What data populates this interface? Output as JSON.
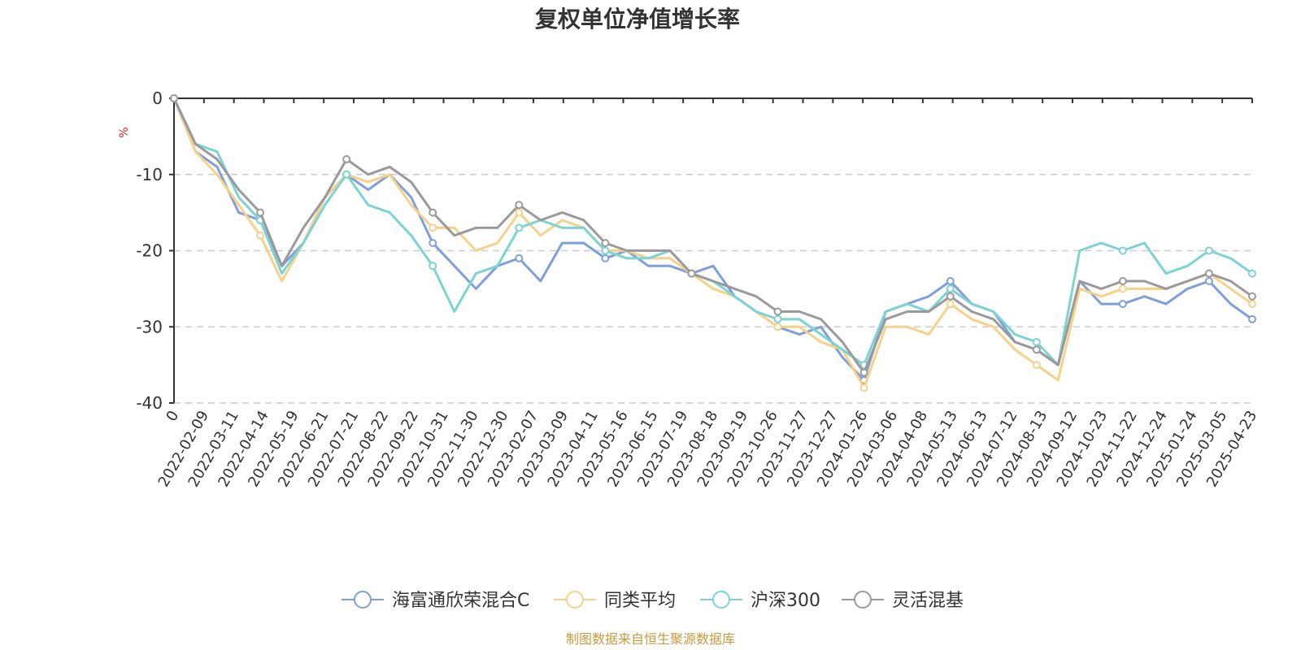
{
  "colors": {
    "axis": "#333333",
    "grid": "#cccccc",
    "footer": "#c79a3e",
    "unit": "#e02020"
  },
  "chart_data": {
    "type": "line",
    "title": "复权单位净值增长率",
    "ylabel_unit": "%",
    "ylim": [
      -40,
      0
    ],
    "y_ticks": [
      0,
      -10,
      -20,
      -30,
      -40
    ],
    "y_tick_labels": [
      "0",
      "-10",
      "-20",
      "-30",
      "-40"
    ],
    "grid": "horizontal-dashed",
    "legend_position": "bottom-center",
    "x_ticks": [
      "0",
      "2022-02-09",
      "2022-03-11",
      "2022-04-14",
      "2022-05-19",
      "2022-06-21",
      "2022-07-21",
      "2022-08-22",
      "2022-09-22",
      "2022-10-31",
      "2022-11-30",
      "2022-12-30",
      "2023-02-07",
      "2023-03-09",
      "2023-04-11",
      "2023-05-16",
      "2023-06-15",
      "2023-07-19",
      "2023-08-18",
      "2023-09-19",
      "2023-10-26",
      "2023-11-27",
      "2023-12-27",
      "2024-01-26",
      "2024-03-06",
      "2024-04-08",
      "2024-05-13",
      "2024-06-13",
      "2024-07-12",
      "2024-08-13",
      "2024-09-12",
      "2024-10-23",
      "2024-11-22",
      "2024-12-24",
      "2025-01-24",
      "2025-03-05",
      "2025-04-23"
    ],
    "series": [
      {
        "name": "海富通欣荣混合C",
        "color": "#7f9fd8",
        "values": [
          0,
          -7,
          -9,
          -15,
          -16,
          -22,
          -19,
          -13,
          -10,
          -12,
          -10,
          -13,
          -19,
          -22,
          -25,
          -22,
          -21,
          -24,
          -19,
          -19,
          -21,
          -20,
          -22,
          -22,
          -23,
          -22,
          -26,
          -28,
          -30,
          -31,
          -30,
          -34,
          -37,
          -28,
          -27,
          -26,
          -24,
          -27,
          -28,
          -32,
          -33,
          -35,
          -24,
          -27,
          -27,
          -26,
          -27,
          -25,
          -24,
          -27,
          -29
        ]
      },
      {
        "name": "同类平均",
        "color": "#f5d18a",
        "values": [
          0,
          -7,
          -10,
          -14,
          -18,
          -24,
          -19,
          -13,
          -10,
          -11,
          -10,
          -14,
          -17,
          -17,
          -20,
          -19,
          -15,
          -18,
          -16,
          -17,
          -20,
          -20,
          -21,
          -21,
          -23,
          -25,
          -26,
          -28,
          -30,
          -30,
          -32,
          -33,
          -38,
          -30,
          -30,
          -31,
          -27,
          -29,
          -30,
          -33,
          -35,
          -37,
          -25,
          -26,
          -25,
          -25,
          -25,
          -24,
          -23,
          -25,
          -27
        ]
      },
      {
        "name": "沪深300",
        "color": "#7dd3d3",
        "values": [
          0,
          -6,
          -7,
          -13,
          -16,
          -23,
          -19,
          -14,
          -10,
          -14,
          -15,
          -18,
          -22,
          -28,
          -23,
          -22,
          -17,
          -16,
          -17,
          -17,
          -20,
          -21,
          -21,
          -20,
          -23,
          -24,
          -26,
          -28,
          -29,
          -29,
          -31,
          -33,
          -35,
          -28,
          -27,
          -28,
          -25,
          -27,
          -28,
          -31,
          -32,
          -35,
          -20,
          -19,
          -20,
          -19,
          -23,
          -22,
          -20,
          -21,
          -23
        ]
      },
      {
        "name": "灵活混基",
        "color": "#9a9a9a",
        "values": [
          0,
          -6,
          -8,
          -12,
          -15,
          -22,
          -17,
          -13,
          -8,
          -10,
          -9,
          -11,
          -15,
          -18,
          -17,
          -17,
          -14,
          -16,
          -15,
          -16,
          -19,
          -20,
          -20,
          -20,
          -23,
          -24,
          -25,
          -26,
          -28,
          -28,
          -29,
          -32,
          -36,
          -29,
          -28,
          -28,
          -26,
          -28,
          -29,
          -32,
          -33,
          -35,
          -24,
          -25,
          -24,
          -24,
          -25,
          -24,
          -23,
          -24,
          -26
        ]
      }
    ]
  },
  "footer": "制图数据来自恒生聚源数据库"
}
